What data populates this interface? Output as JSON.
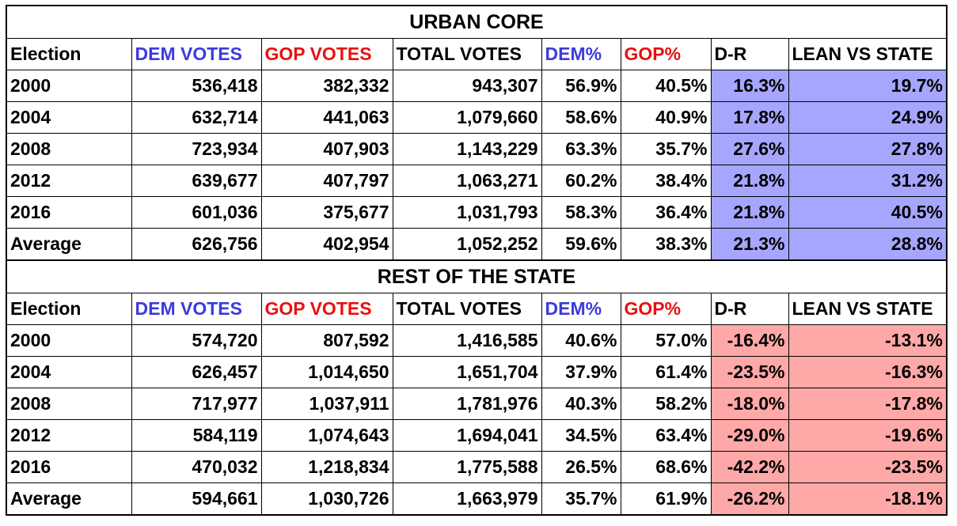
{
  "sections": [
    {
      "title": "URBAN CORE",
      "headers": [
        "Election",
        "DEM VOTES",
        "GOP VOTES",
        "TOTAL VOTES",
        "DEM%",
        "GOP%",
        "D-R",
        "LEAN VS STATE"
      ],
      "rows": [
        [
          "2000",
          "536,418",
          "382,332",
          "943,307",
          "56.9%",
          "40.5%",
          "16.3%",
          "19.7%"
        ],
        [
          "2004",
          "632,714",
          "441,063",
          "1,079,660",
          "58.6%",
          "40.9%",
          "17.8%",
          "24.9%"
        ],
        [
          "2008",
          "723,934",
          "407,903",
          "1,143,229",
          "63.3%",
          "35.7%",
          "27.6%",
          "27.8%"
        ],
        [
          "2012",
          "639,677",
          "407,797",
          "1,063,271",
          "60.2%",
          "38.4%",
          "21.8%",
          "31.2%"
        ],
        [
          "2016",
          "601,036",
          "375,677",
          "1,031,793",
          "58.3%",
          "36.4%",
          "21.8%",
          "40.5%"
        ],
        [
          "Average",
          "626,756",
          "402,954",
          "1,052,252",
          "59.6%",
          "38.3%",
          "21.3%",
          "28.8%"
        ]
      ]
    },
    {
      "title": "REST OF THE STATE",
      "headers": [
        "Election",
        "DEM VOTES",
        "GOP VOTES",
        "TOTAL VOTES",
        "DEM%",
        "GOP%",
        "D-R",
        "LEAN VS STATE"
      ],
      "rows": [
        [
          "2000",
          "574,720",
          "807,592",
          "1,416,585",
          "40.6%",
          "57.0%",
          "-16.4%",
          "-13.1%"
        ],
        [
          "2004",
          "626,457",
          "1,014,650",
          "1,651,704",
          "37.9%",
          "61.4%",
          "-23.5%",
          "-16.3%"
        ],
        [
          "2008",
          "717,977",
          "1,037,911",
          "1,781,976",
          "40.3%",
          "58.2%",
          "-18.0%",
          "-17.8%"
        ],
        [
          "2012",
          "584,119",
          "1,074,643",
          "1,694,041",
          "34.5%",
          "63.4%",
          "-29.0%",
          "-19.6%"
        ],
        [
          "2016",
          "470,032",
          "1,218,834",
          "1,775,588",
          "26.5%",
          "68.6%",
          "-42.2%",
          "-23.5%"
        ],
        [
          "Average",
          "594,661",
          "1,030,726",
          "1,663,979",
          "35.7%",
          "61.9%",
          "-26.2%",
          "-18.1%"
        ]
      ]
    }
  ],
  "colors": {
    "dem_header": "#3b3bdc",
    "gop_header": "#e81010",
    "dem_fill": "#a6a6ff",
    "gop_fill": "#ffa8a8"
  }
}
